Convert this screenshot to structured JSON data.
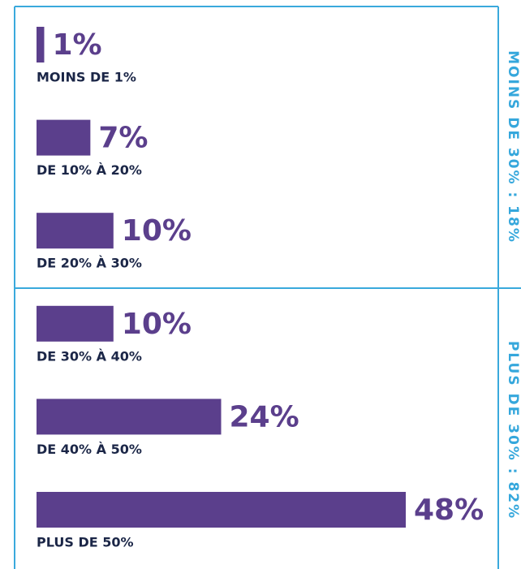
{
  "chart_data": {
    "type": "bar",
    "categories": [
      "MOINS DE 1%",
      "DE 10% À 20%",
      "DE 20% À 30%",
      "DE 30% À 40%",
      "DE 40% À 50%",
      "PLUS DE 50%"
    ],
    "values": [
      1,
      7,
      10,
      10,
      24,
      48
    ],
    "value_labels": [
      "1%",
      "7%",
      "10%",
      "10%",
      "24%",
      "48%"
    ],
    "color": "#5b3f8c",
    "group_labels": [
      "MOINS DE 30% : 18%",
      "PLUS DE 30% : 82%"
    ]
  }
}
